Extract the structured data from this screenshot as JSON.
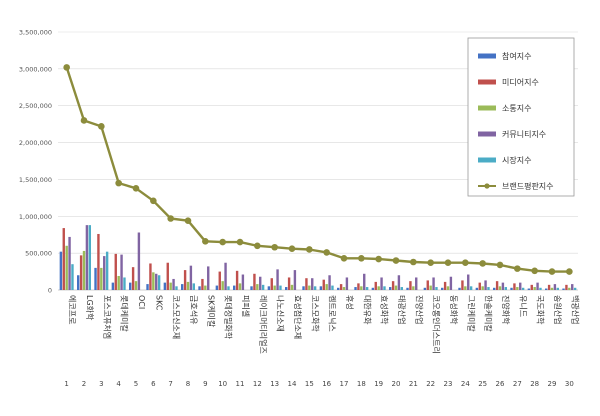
{
  "chart_data": {
    "type": "bar",
    "title": "",
    "xlabel": "",
    "ylabel": "",
    "ylim": [
      0,
      3500000
    ],
    "yticks": [
      0,
      500000,
      1000000,
      1500000,
      2000000,
      2500000,
      3000000,
      3500000
    ],
    "ytick_labels": [
      "0",
      "500,000",
      "1,000,000",
      "1,500,000",
      "2,000,000",
      "2,500,000",
      "3,000,000",
      "3,500,000"
    ],
    "grid": true,
    "legend_position": "top-right",
    "numbers": [
      "1",
      "2",
      "3",
      "4",
      "5",
      "6",
      "7",
      "8",
      "9",
      "10",
      "11",
      "12",
      "13",
      "14",
      "15",
      "16",
      "17",
      "18",
      "19",
      "20",
      "21",
      "22",
      "23",
      "24",
      "25",
      "26",
      "27",
      "28",
      "29",
      "30"
    ],
    "categories": [
      "에코프로",
      "LG화학",
      "포스코퓨처엠",
      "롯데케미칼",
      "OCI",
      "SKC",
      "코스모신소재",
      "금호석유",
      "SK케미칼",
      "롯데정밀화학",
      "피피셀",
      "레이크머티리얼즈",
      "나노신소재",
      "효성첨단소재",
      "코스모화학",
      "켐트로닉스",
      "휴성",
      "대한유화",
      "효성화학",
      "태광산업",
      "진양산업",
      "코오롱인더스트리",
      "동성화학",
      "그린케미칼",
      "한솔케미칼",
      "진양화학",
      "유니드",
      "국도화학",
      "송원산업",
      "백광산업"
    ],
    "series": [
      {
        "name": "참여지수",
        "color": "#4472C4",
        "kind": "bar",
        "values": [
          520000,
          200000,
          300000,
          100000,
          100000,
          80000,
          100000,
          80000,
          50000,
          60000,
          60000,
          50000,
          50000,
          40000,
          50000,
          50000,
          30000,
          40000,
          30000,
          40000,
          30000,
          30000,
          30000,
          30000,
          30000,
          30000,
          30000,
          20000,
          20000,
          20000
        ]
      },
      {
        "name": "미디어지수",
        "color": "#C0504D",
        "kind": "bar",
        "values": [
          840000,
          470000,
          760000,
          490000,
          310000,
          360000,
          370000,
          270000,
          150000,
          250000,
          260000,
          220000,
          160000,
          170000,
          160000,
          140000,
          80000,
          90000,
          110000,
          120000,
          120000,
          130000,
          110000,
          130000,
          100000,
          120000,
          90000,
          70000,
          70000,
          70000
        ]
      },
      {
        "name": "소통지수",
        "color": "#9BBB59",
        "kind": "bar",
        "values": [
          600000,
          530000,
          300000,
          190000,
          120000,
          240000,
          100000,
          110000,
          60000,
          120000,
          90000,
          80000,
          60000,
          70000,
          60000,
          80000,
          40000,
          50000,
          50000,
          60000,
          50000,
          60000,
          50000,
          50000,
          50000,
          50000,
          40000,
          40000,
          30000,
          30000
        ]
      },
      {
        "name": "커뮤니티지수",
        "color": "#8064A2",
        "kind": "bar",
        "values": [
          720000,
          880000,
          460000,
          480000,
          780000,
          220000,
          150000,
          330000,
          320000,
          370000,
          210000,
          180000,
          280000,
          270000,
          160000,
          200000,
          170000,
          220000,
          170000,
          200000,
          170000,
          170000,
          180000,
          210000,
          130000,
          100000,
          100000,
          100000,
          80000,
          80000
        ]
      },
      {
        "name": "시장지수",
        "color": "#4BACC6",
        "kind": "bar",
        "values": [
          350000,
          880000,
          520000,
          170000,
          0,
          200000,
          50000,
          90000,
          0,
          50000,
          0,
          70000,
          60000,
          0,
          50000,
          60000,
          0,
          40000,
          50000,
          40000,
          0,
          40000,
          0,
          50000,
          40000,
          40000,
          30000,
          30000,
          30000,
          30000
        ]
      },
      {
        "name": "브랜드평판지수",
        "color": "#8C8C3C",
        "kind": "line",
        "values": [
          3020000,
          2300000,
          2220000,
          1450000,
          1380000,
          1210000,
          970000,
          940000,
          660000,
          650000,
          650000,
          600000,
          580000,
          560000,
          550000,
          510000,
          430000,
          430000,
          420000,
          400000,
          380000,
          370000,
          370000,
          370000,
          360000,
          340000,
          290000,
          260000,
          250000,
          250000
        ]
      }
    ]
  }
}
